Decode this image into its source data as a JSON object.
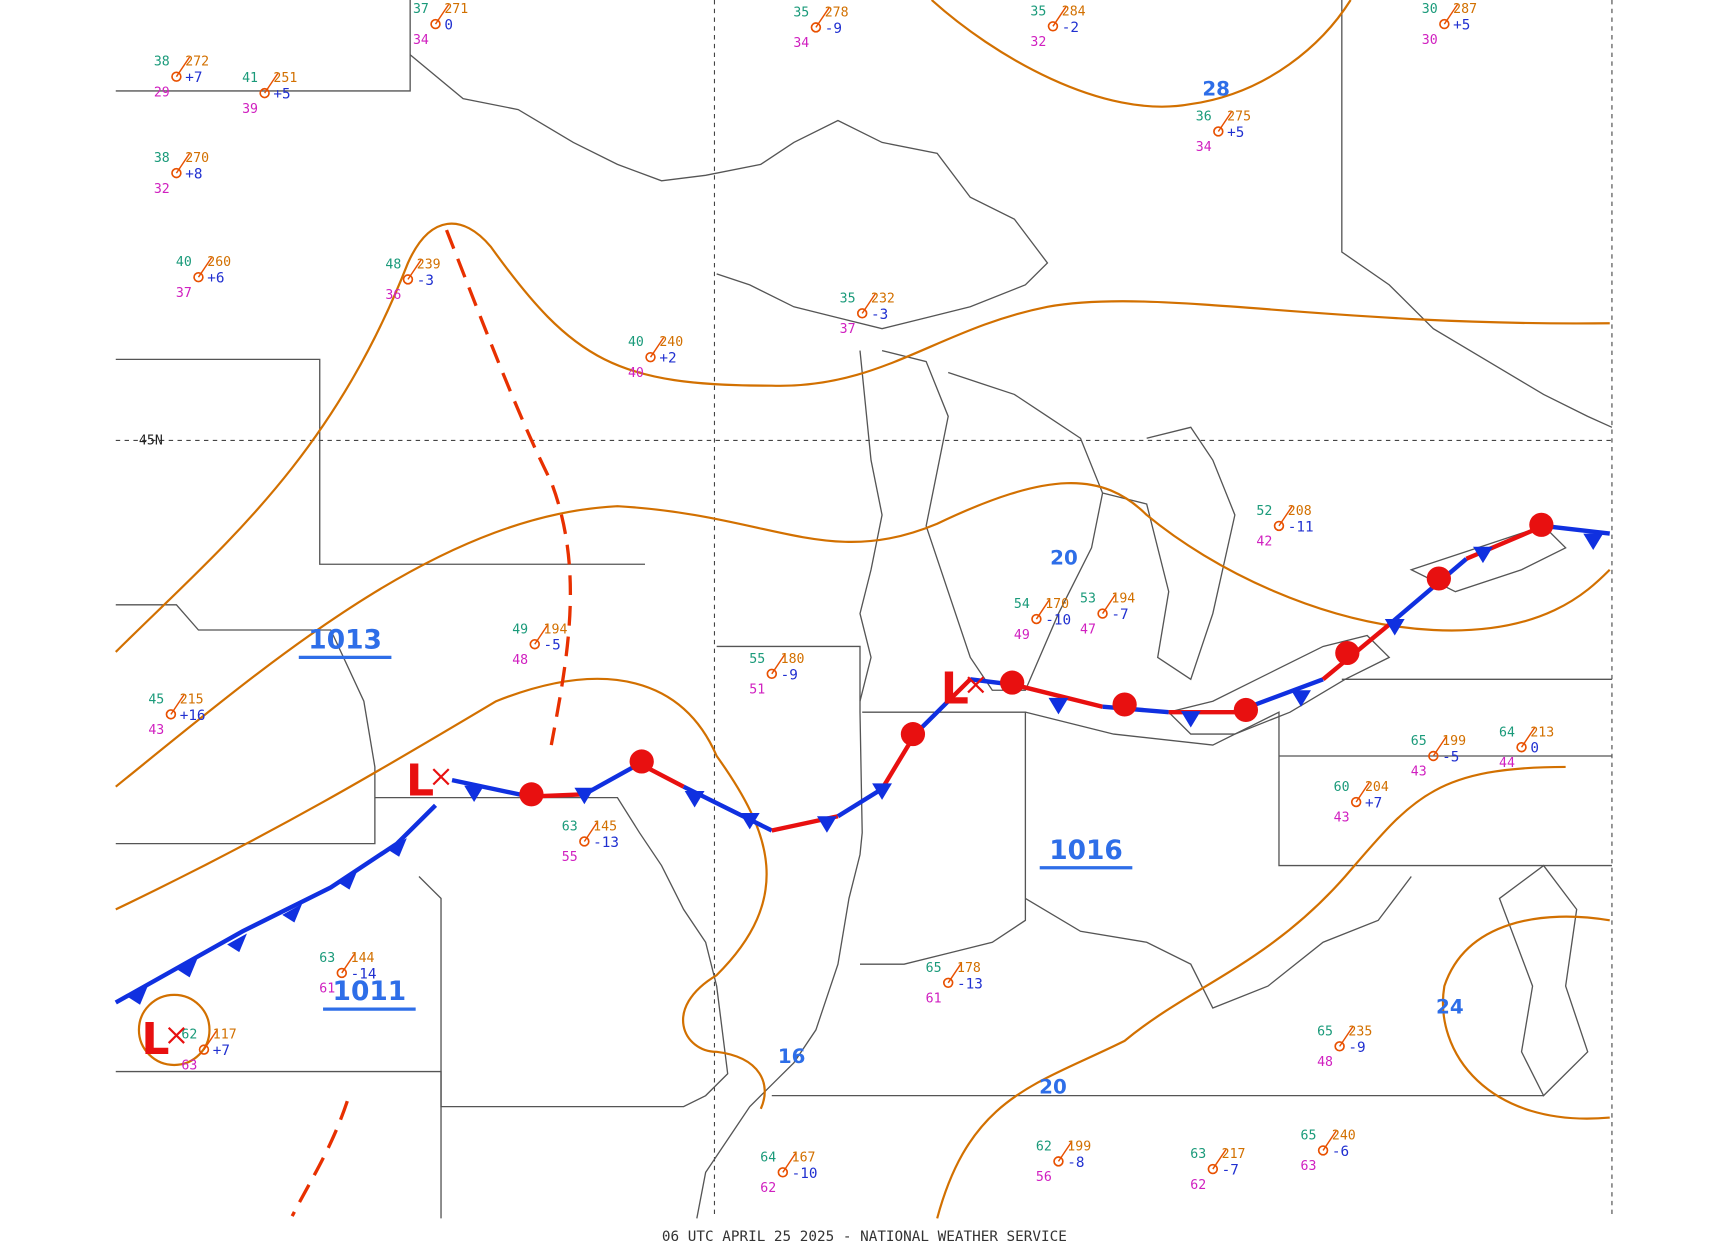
{
  "map": {
    "footer": "06 UTC APRIL 25 2025 - NATIONAL WEATHER SERVICE",
    "latitude_label": "45N",
    "pressure_centers": [
      "1013",
      "1016",
      "1011"
    ],
    "isobar_labels": [
      "28",
      "20",
      "20",
      "24",
      "16"
    ],
    "lows": [
      "L",
      "L",
      "L"
    ],
    "stations": [
      {
        "temp": "38",
        "pressure": "272",
        "tendency": "+7",
        "dewpoint": "29"
      },
      {
        "temp": "41",
        "pressure": "251",
        "tendency": "+5",
        "dewpoint": "39"
      },
      {
        "temp": "37",
        "pressure": "271",
        "tendency": "0",
        "dewpoint": "34"
      },
      {
        "temp": "35",
        "pressure": "278",
        "tendency": "-9",
        "dewpoint": "34"
      },
      {
        "temp": "35",
        "pressure": "284",
        "tendency": "-2",
        "dewpoint": "32"
      },
      {
        "temp": "30",
        "pressure": "287",
        "tendency": "+5",
        "dewpoint": "30"
      },
      {
        "temp": "36",
        "pressure": "275",
        "tendency": "+5",
        "dewpoint": "34"
      },
      {
        "temp": "38",
        "pressure": "270",
        "tendency": "+8",
        "dewpoint": "32"
      },
      {
        "temp": "40",
        "pressure": "260",
        "tendency": "+6",
        "dewpoint": "37"
      },
      {
        "temp": "48",
        "pressure": "239",
        "tendency": "-3",
        "dewpoint": "36"
      },
      {
        "temp": "40",
        "pressure": "240",
        "tendency": "+2",
        "dewpoint": "40"
      },
      {
        "temp": "35",
        "pressure": "232",
        "tendency": "-3",
        "dewpoint": "37"
      },
      {
        "temp": "49",
        "pressure": "194",
        "tendency": "-5",
        "dewpoint": "48"
      },
      {
        "temp": "55",
        "pressure": "180",
        "tendency": "-9",
        "dewpoint": "51"
      },
      {
        "temp": "54",
        "pressure": "170",
        "tendency": "-10",
        "dewpoint": "49"
      },
      {
        "temp": "53",
        "pressure": "194",
        "tendency": "-7",
        "dewpoint": "47"
      },
      {
        "temp": "65",
        "pressure": "199",
        "tendency": "-5",
        "dewpoint": "43"
      },
      {
        "temp": "64",
        "pressure": "213",
        "tendency": "0",
        "dewpoint": "44"
      },
      {
        "temp": "60",
        "pressure": "204",
        "tendency": "+7",
        "dewpoint": "43"
      },
      {
        "temp": "63",
        "pressure": "145",
        "tendency": "-13",
        "dewpoint": "55"
      },
      {
        "temp": "62",
        "pressure": "117",
        "tendency": "+7",
        "dewpoint": "63"
      },
      {
        "temp": "65",
        "pressure": "235",
        "tendency": "-9",
        "dewpoint": "48"
      },
      {
        "temp": "63",
        "pressure": "217",
        "tendency": "-7",
        "dewpoint": "62"
      },
      {
        "temp": "65",
        "pressure": "240",
        "tendency": "-6",
        "dewpoint": "63"
      },
      {
        "temp": "64",
        "pressure": "167",
        "tendency": "-10",
        "dewpoint": "62"
      },
      {
        "temp": "62",
        "pressure": "199",
        "tendency": "-8",
        "dewpoint": "56"
      },
      {
        "temp": "65",
        "pressure": "178",
        "tendency": "-13",
        "dewpoint": "61"
      },
      {
        "temp": "63",
        "pressure": "144",
        "tendency": "-14",
        "dewpoint": "61"
      },
      {
        "temp": "45",
        "pressure": "215",
        "tendency": "+16",
        "dewpoint": "43"
      },
      {
        "temp": "52",
        "pressure": "208",
        "tendency": "-11",
        "dewpoint": "42"
      }
    ]
  }
}
